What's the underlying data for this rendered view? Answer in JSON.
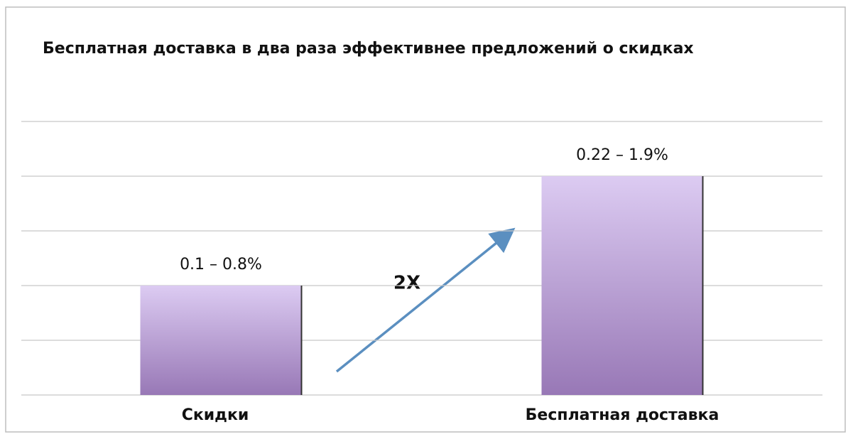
{
  "chart_data": {
    "type": "bar",
    "title": "Бесплатная доставка в два раза эффективнее предложений о скидках",
    "categories": [
      "Скидки",
      "Бесплатная доставка"
    ],
    "values": [
      2,
      4
    ],
    "bar_labels": [
      "0.1 – 0.8%",
      "0.22 – 1.9%"
    ],
    "annotation": "2X",
    "ylim": [
      0,
      5
    ],
    "yticks": [
      0,
      1,
      2,
      3,
      4,
      5
    ],
    "grid": true,
    "color": [
      "#dccbf2",
      "#9878b6"
    ]
  }
}
